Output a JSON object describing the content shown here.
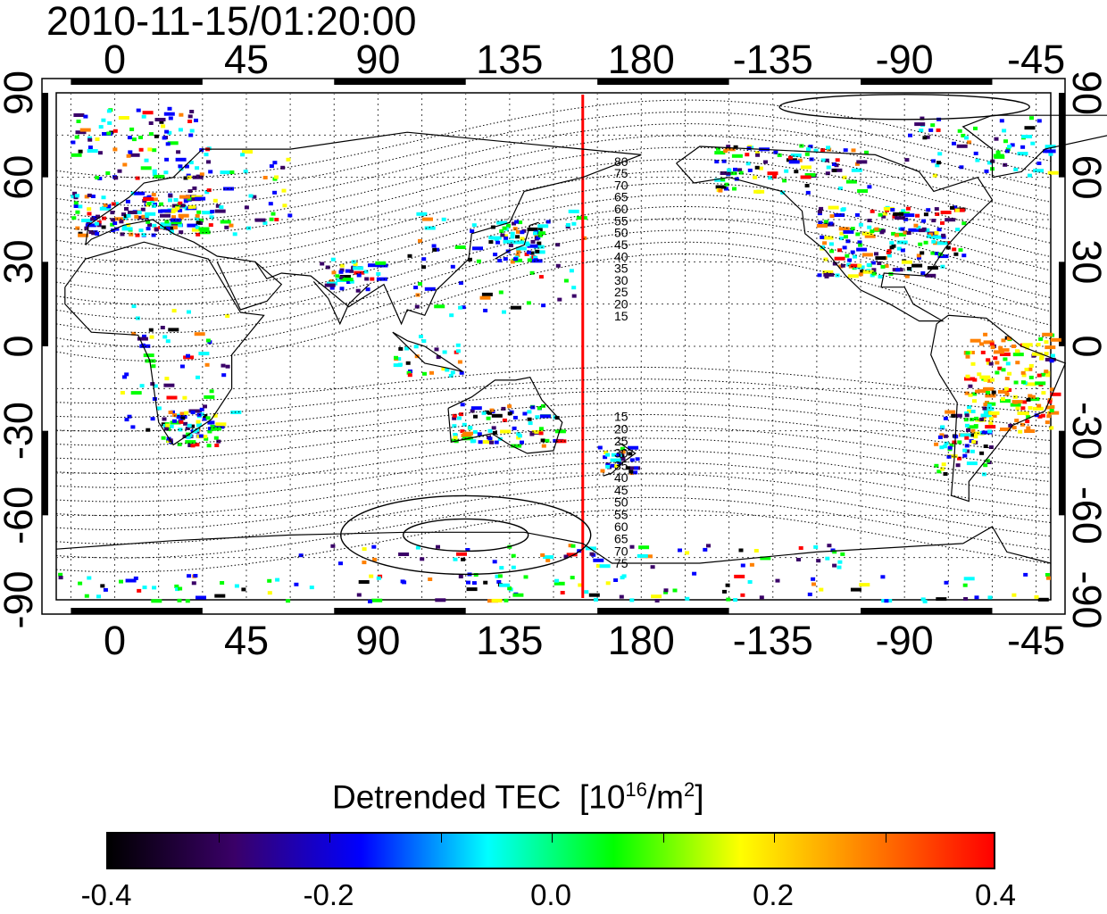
{
  "timestamp": "2010-11-15/01:20:00",
  "map": {
    "projection": "equirectangular",
    "lon_range": [
      -20,
      320
    ],
    "lat_range": [
      -90,
      90
    ],
    "top_lon_ticks": [
      "0",
      "45",
      "90",
      "135",
      "180",
      "-135",
      "-90",
      "-45"
    ],
    "bottom_lon_ticks": [
      "0",
      "45",
      "90",
      "135",
      "180",
      "-135",
      "-90",
      "-45"
    ],
    "left_lat_ticks": [
      "90",
      "60",
      "30",
      "0",
      "-30",
      "-60",
      "-90"
    ],
    "right_lat_ticks": [
      "90",
      "60",
      "30",
      "0",
      "-30",
      "-60",
      "-90"
    ],
    "meridian_line": {
      "lon": 160,
      "color": "#ff0000"
    },
    "grid": "dotted",
    "contour_labels_north": [
      "80",
      "75",
      "70",
      "65",
      "60",
      "55",
      "50",
      "45",
      "40",
      "35",
      "30",
      "25",
      "20",
      "15"
    ],
    "contour_labels_south": [
      "15",
      "20",
      "25",
      "30",
      "35",
      "40",
      "45",
      "50",
      "55",
      "60",
      "65",
      "70",
      "75"
    ]
  },
  "colorbar": {
    "title": "Detrended TEC",
    "unit_base": "10",
    "unit_exp": "16",
    "unit_rest": "/m",
    "unit_exp2": "2",
    "ticks": [
      "-0.4",
      "-0.2",
      "0.0",
      "0.2",
      "0.4"
    ],
    "range": [
      -0.4,
      0.4
    ],
    "colors": [
      "#000000",
      "#3a0068",
      "#0000ff",
      "#00ffff",
      "#00ff00",
      "#ffff00",
      "#ff8000",
      "#ff0000"
    ]
  }
}
